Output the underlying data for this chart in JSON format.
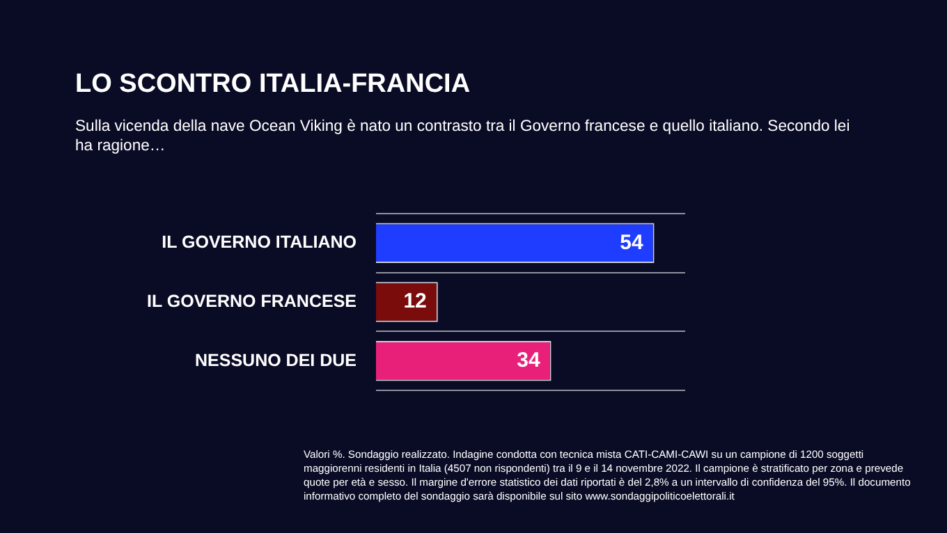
{
  "chart_data": {
    "type": "bar",
    "orientation": "horizontal",
    "title": "LO SCONTRO ITALIA-FRANCIA",
    "subtitle": "Sulla vicenda della nave Ocean Viking è nato un contrasto tra il Governo francese e quello italiano. Secondo lei ha ragione…",
    "categories": [
      "IL GOVERNO ITALIANO",
      "IL GOVERNO FRANCESE",
      "NESSUNO DEI DUE"
    ],
    "values": [
      54,
      12,
      34
    ],
    "colors": [
      "#1f3dff",
      "#7a0c0c",
      "#e8207a"
    ],
    "data_labels": true,
    "grid": "y",
    "annotations": [
      "Valori %. Sondaggio realizzato. Indagine condotta con tecnica mista CATI-CAMI-CAWI su un campione di 1200 soggetti maggiorenni residenti in Italia (4507 non rispondenti) tra il 9 e il 14 novembre 2022. Il campione è stratificato per zona e prevede quote per età e sesso. Il margine d'errore statistico dei dati riportati è del 2,8% a un intervallo di confidenza del 95%. Il documento informativo completo del sondaggio sarà disponibile sul sito www.sondaggipoliticoelettorali.it"
    ]
  }
}
